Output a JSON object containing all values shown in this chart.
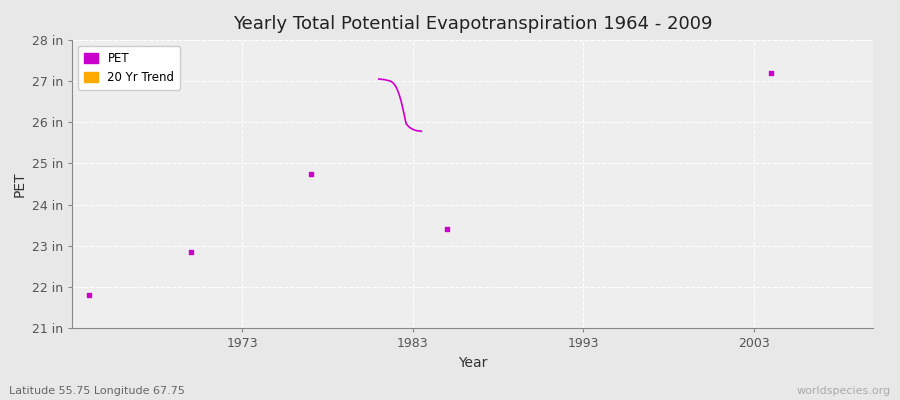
{
  "title": "Yearly Total Potential Evapotranspiration 1964 - 2009",
  "xlabel": "Year",
  "ylabel": "PET",
  "subtitle": "Latitude 55.75 Longitude 67.75",
  "watermark": "worldspecies.org",
  "xlim": [
    1963,
    2010
  ],
  "ylim": [
    21,
    28
  ],
  "yticks": [
    21,
    22,
    23,
    24,
    25,
    26,
    27,
    28
  ],
  "ytick_labels": [
    "21 in",
    "22 in",
    "23 in",
    "24 in",
    "25 in",
    "26 in",
    "27 in",
    "28 in"
  ],
  "xticks": [
    1973,
    1983,
    1993,
    2003
  ],
  "xtick_labels": [
    "1973",
    "1983",
    "1993",
    "2003"
  ],
  "background_color": "#e8e8e8",
  "plot_bg_color": "#eeeeee",
  "grid_color": "#ffffff",
  "pet_color": "#cc00cc",
  "trend_color": "#ffaa00",
  "pet_points": [
    [
      1964,
      21.8
    ],
    [
      1970,
      22.85
    ],
    [
      1977,
      24.75
    ],
    [
      1985,
      23.4
    ],
    [
      2004,
      27.2
    ]
  ],
  "trend_line_x": [
    1981.0,
    1981.1,
    1981.2,
    1981.3,
    1981.4,
    1981.5,
    1981.6,
    1981.7,
    1981.8,
    1981.9,
    1982.0,
    1982.1,
    1982.2,
    1982.3,
    1982.4,
    1982.5,
    1982.6,
    1982.7,
    1982.8,
    1982.9,
    1983.0,
    1983.1,
    1983.2,
    1983.3,
    1983.4,
    1983.5
  ],
  "trend_line_y": [
    27.05,
    27.05,
    27.04,
    27.04,
    27.03,
    27.02,
    27.01,
    27.0,
    26.97,
    26.93,
    26.87,
    26.78,
    26.67,
    26.53,
    26.36,
    26.17,
    25.97,
    25.92,
    25.88,
    25.85,
    25.83,
    25.81,
    25.8,
    25.79,
    25.79,
    25.78
  ],
  "legend_pet_label": "PET",
  "legend_trend_label": "20 Yr Trend",
  "title_fontsize": 13,
  "axis_label_fontsize": 10,
  "tick_fontsize": 9
}
